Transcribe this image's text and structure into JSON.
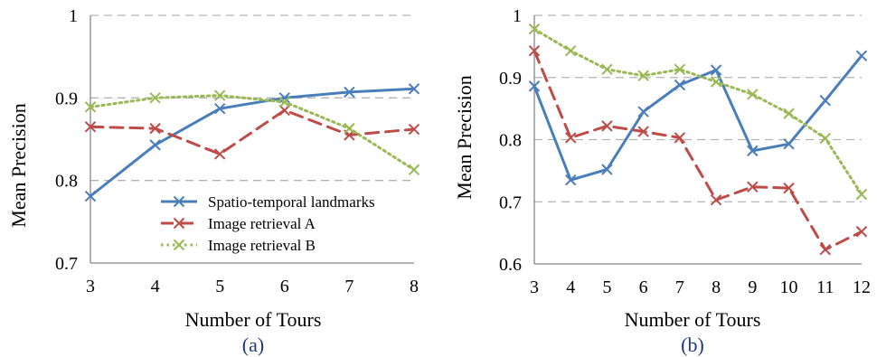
{
  "chart_data": [
    {
      "type": "line",
      "caption": "(a)",
      "xlabel": "Number of Tours",
      "ylabel": "Mean Precision",
      "x": [
        3,
        4,
        5,
        6,
        7,
        8
      ],
      "xlim": [
        3,
        8
      ],
      "ylim": [
        0.7,
        1.0
      ],
      "yticks": [
        "0.7",
        "0.8",
        "0.9",
        "1"
      ],
      "grid": true,
      "legend": "bottom-right",
      "series": [
        {
          "name": "Spatio-temporal landmarks",
          "color": "#4a7ebb",
          "dash": "solid",
          "values": [
            0.781,
            0.843,
            0.887,
            0.9,
            0.907,
            0.911
          ]
        },
        {
          "name": "Image retrieval A",
          "color": "#be4b48",
          "dash": "dash",
          "values": [
            0.865,
            0.863,
            0.832,
            0.885,
            0.855,
            0.862
          ]
        },
        {
          "name": "Image retrieval B",
          "color": "#98b954",
          "dash": "dot",
          "values": [
            0.889,
            0.9,
            0.903,
            0.895,
            0.863,
            0.813
          ]
        }
      ]
    },
    {
      "type": "line",
      "caption": "(b)",
      "xlabel": "Number of Tours",
      "ylabel": "Mean Precision",
      "x": [
        3,
        4,
        5,
        6,
        7,
        8,
        9,
        10,
        11,
        12
      ],
      "xlim": [
        3,
        12
      ],
      "ylim": [
        0.6,
        1.0
      ],
      "yticks": [
        "0.6",
        "0.7",
        "0.8",
        "0.9",
        "1"
      ],
      "grid": true,
      "legend": "none",
      "series": [
        {
          "color": "#4a7ebb",
          "dash": "solid",
          "values": [
            0.886,
            0.735,
            0.752,
            0.845,
            0.888,
            0.912,
            0.782,
            0.793,
            0.863,
            0.935
          ]
        },
        {
          "color": "#be4b48",
          "dash": "dash",
          "values": [
            0.943,
            0.803,
            0.822,
            0.813,
            0.803,
            0.703,
            0.724,
            0.722,
            0.623,
            0.652
          ]
        },
        {
          "color": "#98b954",
          "dash": "dot",
          "values": [
            0.978,
            0.943,
            0.913,
            0.903,
            0.913,
            0.893,
            0.873,
            0.842,
            0.802,
            0.712
          ]
        }
      ]
    }
  ]
}
